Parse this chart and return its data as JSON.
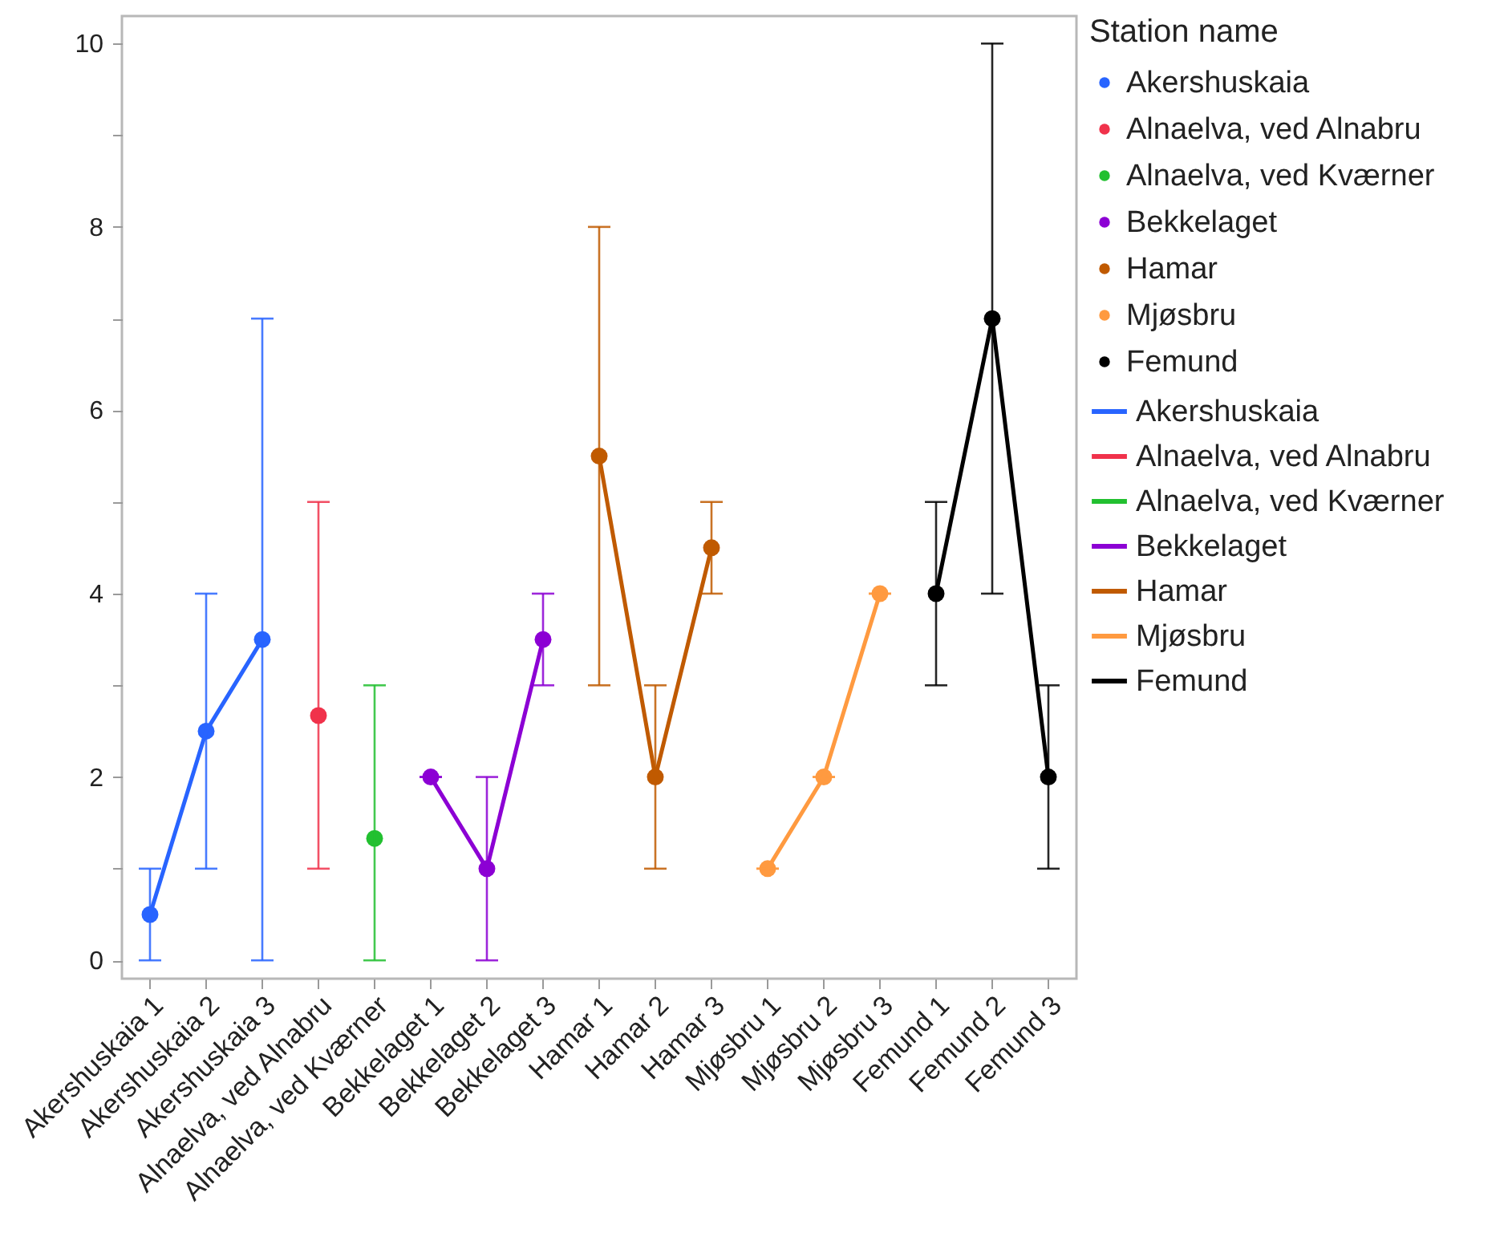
{
  "chart_data": {
    "type": "line",
    "legend_title": "Station name",
    "categories": [
      "Akershuskaia 1",
      "Akershuskaia 2",
      "Akershuskaia 3",
      "Alnaelva, ved Alnabru",
      "Alnaelva, ved Kværner",
      "Bekkelaget 1",
      "Bekkelaget 2",
      "Bekkelaget 3",
      "Hamar 1",
      "Hamar 2",
      "Hamar 3",
      "Mjøsbru 1",
      "Mjøsbru 2",
      "Mjøsbru 3",
      "Femund 1",
      "Femund 2",
      "Femund 3"
    ],
    "series": [
      {
        "name": "Akershuskaia",
        "type": "scatter",
        "color": "#2864ff",
        "values": [
          0.5,
          2.5,
          3.5,
          null,
          null,
          null,
          null,
          null,
          null,
          null,
          null,
          null,
          null,
          null,
          null,
          null,
          null
        ],
        "errors": [
          [
            0,
            1
          ],
          [
            1,
            4
          ],
          [
            0,
            7
          ],
          null,
          null,
          null,
          null,
          null,
          null,
          null,
          null,
          null,
          null,
          null,
          null,
          null,
          null
        ]
      },
      {
        "name": "Alnaelva, ved Alnabru",
        "type": "scatter",
        "color": "#f0324b",
        "values": [
          null,
          null,
          null,
          2.67,
          null,
          null,
          null,
          null,
          null,
          null,
          null,
          null,
          null,
          null,
          null,
          null,
          null
        ],
        "errors": [
          null,
          null,
          null,
          [
            1,
            5
          ],
          null,
          null,
          null,
          null,
          null,
          null,
          null,
          null,
          null,
          null,
          null,
          null,
          null
        ]
      },
      {
        "name": "Alnaelva, ved Kværner",
        "type": "scatter",
        "color": "#22c030",
        "values": [
          null,
          null,
          null,
          null,
          1.33,
          null,
          null,
          null,
          null,
          null,
          null,
          null,
          null,
          null,
          null,
          null,
          null
        ],
        "errors": [
          null,
          null,
          null,
          null,
          [
            0,
            3
          ],
          null,
          null,
          null,
          null,
          null,
          null,
          null,
          null,
          null,
          null,
          null,
          null
        ]
      },
      {
        "name": "Bekkelaget",
        "type": "scatter",
        "color": "#8c00d4",
        "values": [
          null,
          null,
          null,
          null,
          null,
          2,
          1,
          3.5,
          null,
          null,
          null,
          null,
          null,
          null,
          null,
          null,
          null
        ],
        "errors": [
          null,
          null,
          null,
          null,
          null,
          0,
          [
            0,
            2
          ],
          [
            3,
            4
          ],
          null,
          null,
          null,
          null,
          null,
          null,
          null,
          null,
          null
        ]
      },
      {
        "name": "Hamar",
        "type": "scatter",
        "color": "#c05a00",
        "values": [
          null,
          null,
          null,
          null,
          null,
          null,
          null,
          null,
          5.5,
          2,
          4.5,
          null,
          null,
          null,
          null,
          null,
          null
        ],
        "errors": [
          null,
          null,
          null,
          null,
          null,
          null,
          null,
          null,
          [
            3,
            8
          ],
          [
            1,
            3
          ],
          [
            4,
            5
          ],
          null,
          null,
          null,
          null,
          null,
          null
        ]
      },
      {
        "name": "Mjøsbru",
        "type": "scatter",
        "color": "#ff9a40",
        "values": [
          null,
          null,
          null,
          null,
          null,
          null,
          null,
          null,
          null,
          null,
          null,
          1,
          2,
          4,
          null,
          null,
          null
        ],
        "errors": [
          null,
          null,
          null,
          null,
          null,
          null,
          null,
          null,
          null,
          null,
          null,
          0,
          0,
          0,
          null,
          null,
          null
        ]
      },
      {
        "name": "Femund",
        "type": "scatter",
        "color": "#000000",
        "values": [
          null,
          null,
          null,
          null,
          null,
          null,
          null,
          null,
          null,
          null,
          null,
          null,
          null,
          null,
          4,
          7,
          2
        ],
        "errors": [
          null,
          null,
          null,
          null,
          null,
          null,
          null,
          null,
          null,
          null,
          null,
          null,
          null,
          null,
          [
            3,
            5
          ],
          [
            4,
            10
          ],
          [
            1,
            3
          ]
        ]
      },
      {
        "name": "Akershuskaia",
        "marker": "none",
        "color": "#2864ff",
        "values": [
          0.5,
          2.5,
          3.5,
          null,
          null,
          null,
          null,
          null,
          null,
          null,
          null,
          null,
          null,
          null,
          null,
          null,
          null
        ]
      },
      {
        "name": "Alnaelva, ved Alnabru",
        "marker": "none",
        "color": "#f0324b",
        "values": [
          null,
          null,
          null,
          null,
          null,
          null,
          null,
          null,
          null,
          null,
          null,
          null,
          null,
          null,
          null,
          null,
          null
        ]
      },
      {
        "name": "Alnaelva, ved Kværner",
        "marker": "none",
        "color": "#22c030",
        "values": [
          null,
          null,
          null,
          null,
          null,
          null,
          null,
          null,
          null,
          null,
          null,
          null,
          null,
          null,
          null,
          null,
          null
        ]
      },
      {
        "name": "Bekkelaget",
        "marker": "none",
        "color": "#8c00d4",
        "values": [
          null,
          null,
          null,
          null,
          null,
          2,
          1,
          3.5,
          null,
          null,
          null,
          null,
          null,
          null,
          null,
          null,
          null
        ]
      },
      {
        "name": "Hamar",
        "marker": "none",
        "color": "#c05a00",
        "values": [
          null,
          null,
          null,
          null,
          null,
          null,
          null,
          null,
          5.5,
          2,
          4.5,
          null,
          null,
          null,
          null,
          null,
          null
        ]
      },
      {
        "name": "Mjøsbru",
        "marker": "none",
        "color": "#ff9a40",
        "values": [
          null,
          null,
          null,
          null,
          null,
          null,
          null,
          null,
          null,
          null,
          null,
          1,
          2,
          4,
          null,
          null,
          null
        ]
      },
      {
        "name": "Femund",
        "marker": "none",
        "color": "#000000",
        "values": [
          null,
          null,
          null,
          null,
          null,
          null,
          null,
          null,
          null,
          null,
          null,
          null,
          null,
          null,
          4,
          7,
          2
        ]
      }
    ],
    "ylim": [
      -0.2,
      10.3
    ],
    "yticks": [
      0,
      {
        "value": 1,
        "label": null
      },
      2,
      {
        "value": 3,
        "label": null
      },
      4,
      {
        "value": 5,
        "label": null
      },
      6,
      {
        "value": 7,
        "label": null
      },
      8,
      {
        "value": 9,
        "label": null
      },
      10
    ],
    "grid": false,
    "marker": "circle",
    "line_style": "solid",
    "legend": "right"
  }
}
